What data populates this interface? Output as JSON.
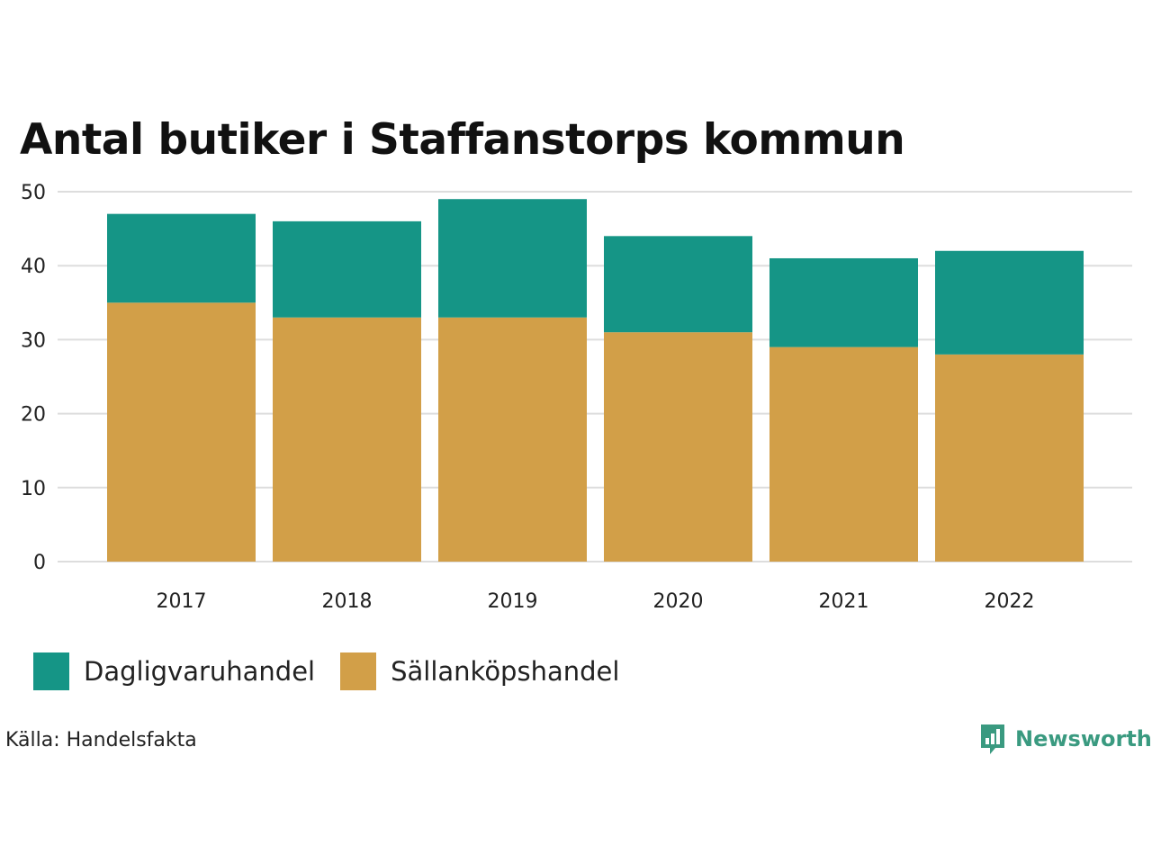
{
  "title": "Antal butiker i Staffanstorps kommun",
  "source": "Källa: Handelsfakta",
  "brand": {
    "name": "Newsworthy",
    "color": "#3a9a80",
    "icon": "bar-chart-speech-bubble-icon"
  },
  "colors": {
    "dagligvaruhandel": "#159586",
    "sallankopshandel": "#d29f48",
    "grid": "#dddddd"
  },
  "chart_data": {
    "type": "bar",
    "stacked": true,
    "title": "Antal butiker i Staffanstorps kommun",
    "xlabel": "",
    "ylabel": "",
    "categories": [
      "2017",
      "2018",
      "2019",
      "2020",
      "2021",
      "2022"
    ],
    "series": [
      {
        "name": "Sällanköpshandel",
        "color": "#d29f48",
        "values": [
          35,
          33,
          33,
          31,
          29,
          28
        ]
      },
      {
        "name": "Dagligvaruhandel",
        "color": "#159586",
        "values": [
          12,
          13,
          16,
          13,
          12,
          14
        ]
      }
    ],
    "totals": [
      47,
      46,
      49,
      44,
      41,
      42
    ],
    "ylim": [
      0,
      50
    ],
    "yticks": [
      0,
      10,
      20,
      30,
      40,
      50
    ],
    "grid": true,
    "legend": {
      "position": "bottom-left",
      "entries": [
        "Dagligvaruhandel",
        "Sällanköpshandel"
      ]
    }
  }
}
